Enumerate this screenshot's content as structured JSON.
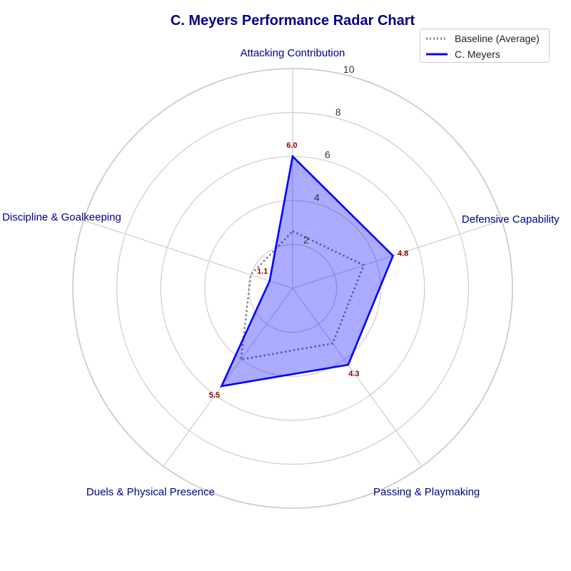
{
  "chart_data": {
    "type": "radar",
    "title": "C. Meyers Performance Radar Chart",
    "categories": [
      "Attacking Contribution",
      "Defensive Capability",
      "Passing & Playmaking",
      "Duels & Physical Presence",
      "Discipline & Goalkeeping"
    ],
    "rlim": [
      0,
      10
    ],
    "rticks": [
      2,
      4,
      6,
      8,
      10
    ],
    "grid": true,
    "legend_position": "top-right",
    "series": [
      {
        "name": "Baseline (Average)",
        "values": [
          2.6,
          3.4,
          3.1,
          4.0,
          2.0
        ],
        "style": "dotted",
        "color": "#808080"
      },
      {
        "name": "C. Meyers",
        "values": [
          6.0,
          4.8,
          4.3,
          5.5,
          1.1
        ],
        "style": "solid",
        "color": "#0000ff",
        "fill": "#0000ff",
        "fill_opacity": 0.33,
        "labels": [
          "6.0",
          "4.8",
          "4.3",
          "5.5",
          "1.1"
        ]
      }
    ],
    "label_color": "#8b0000",
    "category_color": "#00008b"
  }
}
